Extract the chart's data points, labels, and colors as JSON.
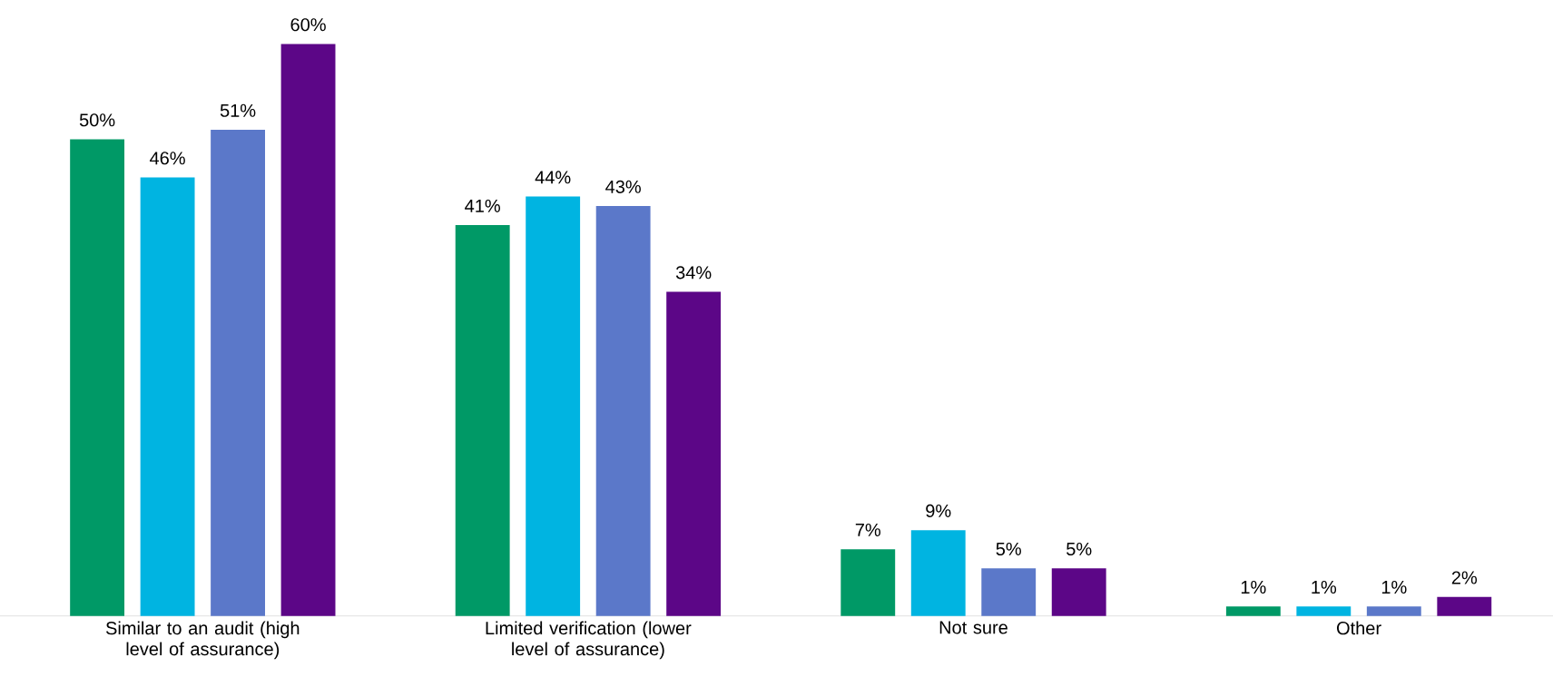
{
  "chart_data": {
    "type": "bar",
    "categories": [
      "Similar to an audit (high level of assurance)",
      "Limited verification (lower level of assurance)",
      "Not sure",
      "Other"
    ],
    "series": [
      {
        "color": "#009966",
        "values": [
          50,
          41,
          7,
          1
        ],
        "value_labels": [
          "50%",
          "41%",
          "7%",
          "1%"
        ]
      },
      {
        "color": "#00b4e1",
        "values": [
          46,
          44,
          9,
          1
        ],
        "value_labels": [
          "46%",
          "44%",
          "9%",
          "1%"
        ]
      },
      {
        "color": "#5b78c9",
        "values": [
          51,
          43,
          5,
          1
        ],
        "value_labels": [
          "51%",
          "43%",
          "5%",
          "1%"
        ]
      },
      {
        "color": "#5c0687",
        "values": [
          60,
          34,
          5,
          2
        ],
        "value_labels": [
          "60%",
          "34%",
          "5%",
          "2%"
        ]
      }
    ]
  }
}
